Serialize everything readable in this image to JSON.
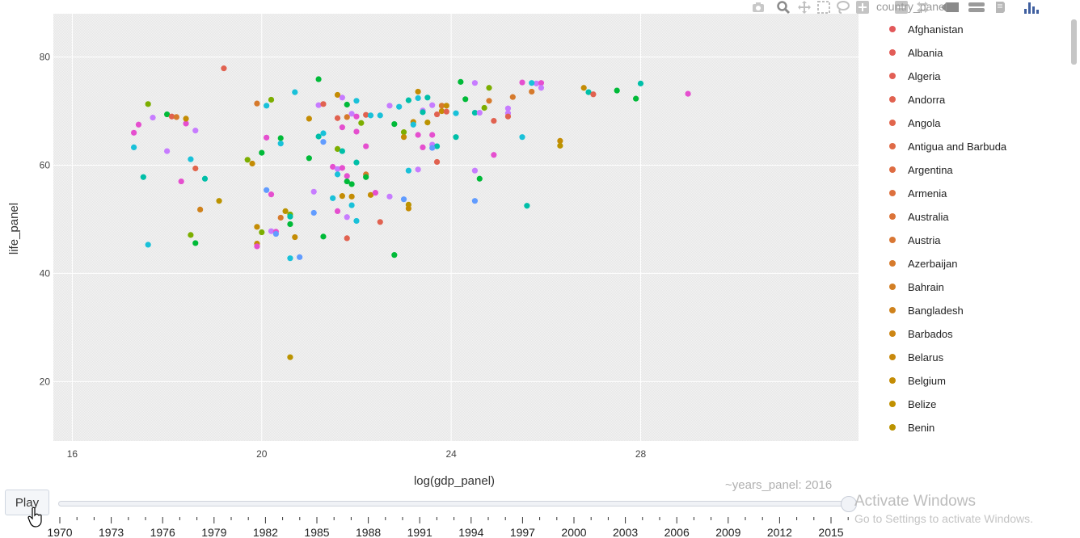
{
  "chart_data": {
    "type": "scatter",
    "title": "",
    "xlabel": "log(gdp_panel)",
    "ylabel": "life_panel",
    "xlim": [
      15.6,
      32.6
    ],
    "ylim": [
      9,
      88
    ],
    "x_ticks": [
      16,
      20,
      24,
      28
    ],
    "y_ticks": [
      20,
      40,
      60,
      80
    ],
    "grid": true,
    "legend_placement": "right",
    "legend_title": "country_panel",
    "legend": [
      {
        "name": "Afghanistan",
        "color": "#e2585a"
      },
      {
        "name": "Albania",
        "color": "#e25c57"
      },
      {
        "name": "Algeria",
        "color": "#e25f55"
      },
      {
        "name": "Andorra",
        "color": "#e16250"
      },
      {
        "name": "Angola",
        "color": "#e1654c"
      },
      {
        "name": "Antigua and Barbuda",
        "color": "#df6a47"
      },
      {
        "name": "Argentina",
        "color": "#de6c42"
      },
      {
        "name": "Armenia",
        "color": "#dd703d"
      },
      {
        "name": "Australia",
        "color": "#db7338"
      },
      {
        "name": "Austria",
        "color": "#d97734"
      },
      {
        "name": "Azerbaijan",
        "color": "#d67a2c"
      },
      {
        "name": "Bahrain",
        "color": "#d27e24"
      },
      {
        "name": "Bangladesh",
        "color": "#cf821c"
      },
      {
        "name": "Barbados",
        "color": "#cc8514"
      },
      {
        "name": "Belarus",
        "color": "#c8890c"
      },
      {
        "name": "Belgium",
        "color": "#c48c04"
      },
      {
        "name": "Belize",
        "color": "#c09000"
      },
      {
        "name": "Benin",
        "color": "#bb9300"
      }
    ],
    "series": [
      {
        "x": 17.3,
        "y": 66.0,
        "color": "#e54fcf"
      },
      {
        "x": 17.4,
        "y": 67.5,
        "color": "#e54fcf"
      },
      {
        "x": 17.3,
        "y": 63.3,
        "color": "#19c1d9"
      },
      {
        "x": 17.7,
        "y": 68.8,
        "color": "#c77cff"
      },
      {
        "x": 17.6,
        "y": 71.3,
        "color": "#7cae00"
      },
      {
        "x": 17.5,
        "y": 57.8,
        "color": "#00bfa8"
      },
      {
        "x": 17.6,
        "y": 45.3,
        "color": "#19c1d9"
      },
      {
        "x": 18.0,
        "y": 69.4,
        "color": "#00ba38"
      },
      {
        "x": 18.1,
        "y": 69.0,
        "color": "#e16250"
      },
      {
        "x": 18.2,
        "y": 68.9,
        "color": "#d67a2c"
      },
      {
        "x": 18.4,
        "y": 67.7,
        "color": "#e54fcf"
      },
      {
        "x": 18.4,
        "y": 68.6,
        "color": "#c48c04"
      },
      {
        "x": 18.0,
        "y": 62.6,
        "color": "#c77cff"
      },
      {
        "x": 18.3,
        "y": 57.0,
        "color": "#e54fcf"
      },
      {
        "x": 18.6,
        "y": 66.4,
        "color": "#c77cff"
      },
      {
        "x": 18.5,
        "y": 61.1,
        "color": "#19c1d9"
      },
      {
        "x": 18.6,
        "y": 59.4,
        "color": "#e1654c"
      },
      {
        "x": 18.8,
        "y": 57.5,
        "color": "#00bfa8"
      },
      {
        "x": 18.5,
        "y": 47.1,
        "color": "#7cae00"
      },
      {
        "x": 18.6,
        "y": 45.6,
        "color": "#00ba38"
      },
      {
        "x": 18.7,
        "y": 51.8,
        "color": "#cf821c"
      },
      {
        "x": 19.2,
        "y": 77.9,
        "color": "#e16250"
      },
      {
        "x": 19.1,
        "y": 53.4,
        "color": "#bb9300"
      },
      {
        "x": 19.7,
        "y": 61.0,
        "color": "#7cae00"
      },
      {
        "x": 19.8,
        "y": 60.3,
        "color": "#c48c04"
      },
      {
        "x": 19.9,
        "y": 71.4,
        "color": "#d67a2c"
      },
      {
        "x": 20.2,
        "y": 72.1,
        "color": "#7cae00"
      },
      {
        "x": 20.1,
        "y": 71.0,
        "color": "#19c1d9"
      },
      {
        "x": 20.0,
        "y": 62.3,
        "color": "#00ba38"
      },
      {
        "x": 20.1,
        "y": 65.1,
        "color": "#e54fcf"
      },
      {
        "x": 20.4,
        "y": 65.0,
        "color": "#00ba38"
      },
      {
        "x": 20.4,
        "y": 64.0,
        "color": "#19c1d9"
      },
      {
        "x": 20.1,
        "y": 55.4,
        "color": "#619cff"
      },
      {
        "x": 20.2,
        "y": 54.6,
        "color": "#e54fcf"
      },
      {
        "x": 19.9,
        "y": 48.6,
        "color": "#c48c04"
      },
      {
        "x": 20.0,
        "y": 47.6,
        "color": "#7cae00"
      },
      {
        "x": 19.9,
        "y": 45.5,
        "color": "#c48c04"
      },
      {
        "x": 19.9,
        "y": 45.0,
        "color": "#e54fcf"
      },
      {
        "x": 20.2,
        "y": 47.8,
        "color": "#c77cff"
      },
      {
        "x": 20.3,
        "y": 47.7,
        "color": "#e54fcf"
      },
      {
        "x": 20.3,
        "y": 47.3,
        "color": "#619cff"
      },
      {
        "x": 20.4,
        "y": 50.3,
        "color": "#d67a2c"
      },
      {
        "x": 20.5,
        "y": 51.5,
        "color": "#bb9300"
      },
      {
        "x": 20.6,
        "y": 50.9,
        "color": "#7cae00"
      },
      {
        "x": 20.6,
        "y": 50.5,
        "color": "#00bfa8"
      },
      {
        "x": 20.6,
        "y": 49.1,
        "color": "#00ba38"
      },
      {
        "x": 20.7,
        "y": 46.7,
        "color": "#c48c04"
      },
      {
        "x": 20.6,
        "y": 42.8,
        "color": "#19c1d9"
      },
      {
        "x": 20.8,
        "y": 43.0,
        "color": "#619cff"
      },
      {
        "x": 20.6,
        "y": 24.5,
        "color": "#bb9300"
      },
      {
        "x": 20.7,
        "y": 73.5,
        "color": "#19c1d9"
      },
      {
        "x": 21.0,
        "y": 68.6,
        "color": "#c48c04"
      },
      {
        "x": 21.0,
        "y": 61.3,
        "color": "#00ba38"
      },
      {
        "x": 21.2,
        "y": 75.9,
        "color": "#00ba38"
      },
      {
        "x": 21.2,
        "y": 71.1,
        "color": "#c77cff"
      },
      {
        "x": 21.3,
        "y": 71.3,
        "color": "#e16250"
      },
      {
        "x": 21.2,
        "y": 65.3,
        "color": "#00bfa8"
      },
      {
        "x": 21.3,
        "y": 65.9,
        "color": "#19c1d9"
      },
      {
        "x": 21.3,
        "y": 64.3,
        "color": "#619cff"
      },
      {
        "x": 21.1,
        "y": 55.1,
        "color": "#c77cff"
      },
      {
        "x": 21.1,
        "y": 51.2,
        "color": "#619cff"
      },
      {
        "x": 21.3,
        "y": 46.8,
        "color": "#00ba38"
      },
      {
        "x": 21.6,
        "y": 73.0,
        "color": "#c48c04"
      },
      {
        "x": 21.7,
        "y": 72.5,
        "color": "#c77cff"
      },
      {
        "x": 21.8,
        "y": 71.2,
        "color": "#00ba38"
      },
      {
        "x": 22.0,
        "y": 71.9,
        "color": "#19c1d9"
      },
      {
        "x": 21.6,
        "y": 68.7,
        "color": "#e16250"
      },
      {
        "x": 21.8,
        "y": 68.9,
        "color": "#d67a2c"
      },
      {
        "x": 21.9,
        "y": 69.5,
        "color": "#c77cff"
      },
      {
        "x": 22.0,
        "y": 69.0,
        "color": "#e54fcf"
      },
      {
        "x": 21.7,
        "y": 67.0,
        "color": "#e54fcf"
      },
      {
        "x": 22.0,
        "y": 66.2,
        "color": "#e54fcf"
      },
      {
        "x": 22.1,
        "y": 67.8,
        "color": "#7cae00"
      },
      {
        "x": 22.2,
        "y": 69.3,
        "color": "#e16250"
      },
      {
        "x": 22.3,
        "y": 69.2,
        "color": "#19c1d9"
      },
      {
        "x": 21.6,
        "y": 63.0,
        "color": "#7cae00"
      },
      {
        "x": 21.7,
        "y": 62.6,
        "color": "#00bfa8"
      },
      {
        "x": 22.2,
        "y": 63.5,
        "color": "#e54fcf"
      },
      {
        "x": 21.5,
        "y": 59.7,
        "color": "#e54fcf"
      },
      {
        "x": 21.6,
        "y": 59.3,
        "color": "#c77cff"
      },
      {
        "x": 21.7,
        "y": 59.5,
        "color": "#e54fcf"
      },
      {
        "x": 21.6,
        "y": 58.3,
        "color": "#19c1d9"
      },
      {
        "x": 21.8,
        "y": 58.0,
        "color": "#e54fcf"
      },
      {
        "x": 21.8,
        "y": 57.0,
        "color": "#00ba38"
      },
      {
        "x": 21.9,
        "y": 56.5,
        "color": "#00ba38"
      },
      {
        "x": 22.0,
        "y": 60.5,
        "color": "#00bfa8"
      },
      {
        "x": 22.2,
        "y": 58.3,
        "color": "#d67a2c"
      },
      {
        "x": 22.2,
        "y": 57.8,
        "color": "#00ba38"
      },
      {
        "x": 21.5,
        "y": 53.9,
        "color": "#19c1d9"
      },
      {
        "x": 21.7,
        "y": 54.3,
        "color": "#c48c04"
      },
      {
        "x": 21.9,
        "y": 54.2,
        "color": "#c48c04"
      },
      {
        "x": 21.9,
        "y": 52.6,
        "color": "#19c1d9"
      },
      {
        "x": 21.6,
        "y": 51.5,
        "color": "#e54fcf"
      },
      {
        "x": 21.8,
        "y": 50.4,
        "color": "#c77cff"
      },
      {
        "x": 22.0,
        "y": 49.7,
        "color": "#19c1d9"
      },
      {
        "x": 21.8,
        "y": 46.5,
        "color": "#e16250"
      },
      {
        "x": 22.3,
        "y": 54.5,
        "color": "#c48c04"
      },
      {
        "x": 22.4,
        "y": 54.9,
        "color": "#e54fcf"
      },
      {
        "x": 22.5,
        "y": 49.5,
        "color": "#e16250"
      },
      {
        "x": 22.5,
        "y": 69.2,
        "color": "#19c1d9"
      },
      {
        "x": 22.7,
        "y": 71.0,
        "color": "#c77cff"
      },
      {
        "x": 22.8,
        "y": 67.6,
        "color": "#00ba38"
      },
      {
        "x": 22.9,
        "y": 70.8,
        "color": "#19c1d9"
      },
      {
        "x": 23.0,
        "y": 66.1,
        "color": "#7cae00"
      },
      {
        "x": 23.0,
        "y": 65.2,
        "color": "#c48c04"
      },
      {
        "x": 23.1,
        "y": 72.0,
        "color": "#00bfa8"
      },
      {
        "x": 23.2,
        "y": 68.0,
        "color": "#c48c04"
      },
      {
        "x": 23.2,
        "y": 67.5,
        "color": "#19c1d9"
      },
      {
        "x": 23.1,
        "y": 59.0,
        "color": "#19c1d9"
      },
      {
        "x": 22.7,
        "y": 54.2,
        "color": "#c77cff"
      },
      {
        "x": 23.0,
        "y": 53.7,
        "color": "#619cff"
      },
      {
        "x": 23.1,
        "y": 52.7,
        "color": "#bb9300"
      },
      {
        "x": 23.1,
        "y": 52.0,
        "color": "#c48c04"
      },
      {
        "x": 22.8,
        "y": 43.4,
        "color": "#00ba38"
      },
      {
        "x": 23.3,
        "y": 73.6,
        "color": "#c48c04"
      },
      {
        "x": 23.3,
        "y": 72.4,
        "color": "#19c1d9"
      },
      {
        "x": 23.5,
        "y": 72.5,
        "color": "#00bfa8"
      },
      {
        "x": 23.4,
        "y": 70.1,
        "color": "#c77cff"
      },
      {
        "x": 23.4,
        "y": 69.8,
        "color": "#00bfa8"
      },
      {
        "x": 23.6,
        "y": 71.1,
        "color": "#c77cff"
      },
      {
        "x": 23.8,
        "y": 71.0,
        "color": "#d67a2c"
      },
      {
        "x": 23.9,
        "y": 71.0,
        "color": "#c48c04"
      },
      {
        "x": 23.8,
        "y": 70.0,
        "color": "#c48c04"
      },
      {
        "x": 23.9,
        "y": 69.9,
        "color": "#e16250"
      },
      {
        "x": 23.7,
        "y": 69.4,
        "color": "#e16250"
      },
      {
        "x": 23.3,
        "y": 65.6,
        "color": "#e54fcf"
      },
      {
        "x": 23.6,
        "y": 65.6,
        "color": "#e54fcf"
      },
      {
        "x": 23.5,
        "y": 67.9,
        "color": "#bb9300"
      },
      {
        "x": 23.4,
        "y": 63.3,
        "color": "#e54fcf"
      },
      {
        "x": 23.6,
        "y": 63.8,
        "color": "#c77cff"
      },
      {
        "x": 23.7,
        "y": 63.5,
        "color": "#00bfa8"
      },
      {
        "x": 23.6,
        "y": 63.2,
        "color": "#619cff"
      },
      {
        "x": 23.3,
        "y": 59.2,
        "color": "#c77cff"
      },
      {
        "x": 23.7,
        "y": 60.6,
        "color": "#e16250"
      },
      {
        "x": 24.1,
        "y": 65.2,
        "color": "#00bfa8"
      },
      {
        "x": 24.2,
        "y": 75.4,
        "color": "#00ba38"
      },
      {
        "x": 24.3,
        "y": 72.2,
        "color": "#00ba38"
      },
      {
        "x": 24.5,
        "y": 75.2,
        "color": "#c77cff"
      },
      {
        "x": 24.8,
        "y": 74.3,
        "color": "#7cae00"
      },
      {
        "x": 24.8,
        "y": 71.9,
        "color": "#d67a2c"
      },
      {
        "x": 24.7,
        "y": 70.6,
        "color": "#7cae00"
      },
      {
        "x": 24.5,
        "y": 69.7,
        "color": "#00bfa8"
      },
      {
        "x": 24.6,
        "y": 69.7,
        "color": "#c77cff"
      },
      {
        "x": 24.1,
        "y": 69.6,
        "color": "#19c1d9"
      },
      {
        "x": 24.9,
        "y": 68.2,
        "color": "#e16250"
      },
      {
        "x": 24.5,
        "y": 59.0,
        "color": "#c77cff"
      },
      {
        "x": 24.6,
        "y": 57.5,
        "color": "#00ba38"
      },
      {
        "x": 24.5,
        "y": 53.4,
        "color": "#619cff"
      },
      {
        "x": 24.9,
        "y": 61.9,
        "color": "#e54fcf"
      },
      {
        "x": 25.2,
        "y": 69.6,
        "color": "#c77cff"
      },
      {
        "x": 25.2,
        "y": 70.5,
        "color": "#c77cff"
      },
      {
        "x": 25.2,
        "y": 69.0,
        "color": "#e16250"
      },
      {
        "x": 25.3,
        "y": 72.6,
        "color": "#d67a2c"
      },
      {
        "x": 25.5,
        "y": 75.3,
        "color": "#e54fcf"
      },
      {
        "x": 25.8,
        "y": 75.1,
        "color": "#c77cff"
      },
      {
        "x": 25.9,
        "y": 75.2,
        "color": "#e54fcf"
      },
      {
        "x": 25.9,
        "y": 74.3,
        "color": "#c77cff"
      },
      {
        "x": 25.7,
        "y": 73.6,
        "color": "#d67a2c"
      },
      {
        "x": 25.7,
        "y": 75.2,
        "color": "#19c1d9"
      },
      {
        "x": 25.5,
        "y": 65.2,
        "color": "#19c1d9"
      },
      {
        "x": 25.6,
        "y": 52.5,
        "color": "#00bfa8"
      },
      {
        "x": 26.3,
        "y": 64.5,
        "color": "#c48c04"
      },
      {
        "x": 26.3,
        "y": 63.6,
        "color": "#bb9300"
      },
      {
        "x": 26.8,
        "y": 74.3,
        "color": "#c48c04"
      },
      {
        "x": 26.9,
        "y": 73.5,
        "color": "#00bfa8"
      },
      {
        "x": 27.0,
        "y": 73.1,
        "color": "#e16250"
      },
      {
        "x": 27.5,
        "y": 73.8,
        "color": "#00ba38"
      },
      {
        "x": 27.9,
        "y": 72.3,
        "color": "#00ba38"
      },
      {
        "x": 28.0,
        "y": 75.1,
        "color": "#00bfa8"
      },
      {
        "x": 29.0,
        "y": 73.2,
        "color": "#e54fcf"
      }
    ]
  },
  "modebar": {
    "icons": [
      "camera-icon",
      "zoom-icon",
      "pan-icon",
      "box-select-icon",
      "lasso-icon",
      "zoom-in-icon",
      "zoom-out-icon",
      "autoscale-icon",
      "reset-axes-icon",
      "spike-lines-icon",
      "hover-closest-icon",
      "hover-compare-icon",
      "plotly-logo-icon"
    ]
  },
  "animation": {
    "play_label": "Play",
    "current_label": "~years_panel: 2016",
    "years": [
      "1970",
      "1973",
      "1976",
      "1979",
      "1982",
      "1985",
      "1988",
      "1991",
      "1994",
      "1997",
      "2000",
      "2003",
      "2006",
      "2009",
      "2012",
      "2015"
    ],
    "current_fraction": 1.0
  },
  "watermark": {
    "line1": "Activate Windows",
    "line2": "Go to Settings to activate Windows."
  },
  "colors": {
    "plot_bg": "#ebebeb",
    "grid": "#ffffff",
    "axis_text": "#444444"
  }
}
